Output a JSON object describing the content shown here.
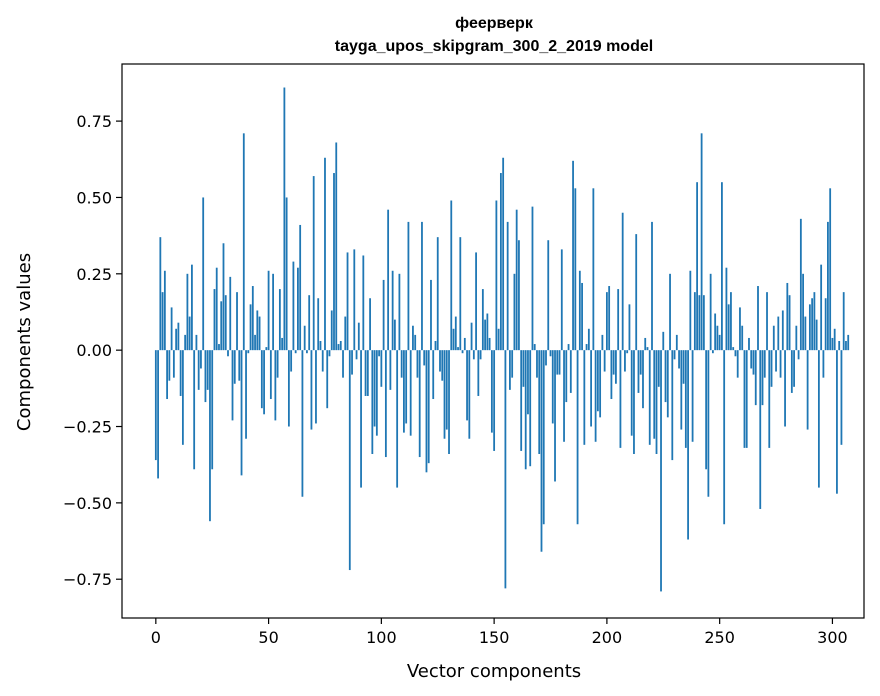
{
  "chart_data": {
    "type": "bar",
    "title": "феерверк",
    "subtitle": "tayga_upos_skipgram_300_2_2019 model",
    "xlabel": "Vector components",
    "ylabel": "Components values",
    "xlim": [
      -15,
      314
    ],
    "ylim": [
      -0.877,
      0.937
    ],
    "xticks": [
      0,
      50,
      100,
      150,
      200,
      250,
      300
    ],
    "xtick_labels": [
      "0",
      "50",
      "100",
      "150",
      "200",
      "250",
      "300"
    ],
    "yticks": [
      -0.75,
      -0.5,
      -0.25,
      0.0,
      0.25,
      0.5,
      0.75
    ],
    "ytick_labels": [
      "−0.75",
      "−0.50",
      "−0.25",
      "0.00",
      "0.25",
      "0.50",
      "0.75"
    ],
    "grid": false,
    "bar_color": "#1f77b4",
    "x_start": 0,
    "values": [
      -0.36,
      -0.42,
      0.37,
      0.19,
      0.26,
      -0.16,
      -0.1,
      0.14,
      -0.09,
      0.07,
      0.09,
      -0.15,
      -0.31,
      0.05,
      0.25,
      0.11,
      0.28,
      -0.39,
      0.05,
      -0.13,
      -0.06,
      0.5,
      -0.17,
      -0.13,
      -0.56,
      -0.39,
      0.2,
      0.27,
      0.02,
      0.16,
      0.35,
      0.18,
      -0.02,
      0.24,
      -0.23,
      -0.11,
      0.19,
      -0.1,
      -0.41,
      0.71,
      -0.29,
      -0.01,
      0.15,
      0.21,
      0.05,
      0.13,
      0.11,
      -0.19,
      -0.21,
      0.01,
      0.26,
      -0.16,
      0.25,
      -0.23,
      -0.09,
      0.2,
      0.04,
      0.86,
      0.5,
      -0.25,
      -0.07,
      0.29,
      -0.01,
      0.27,
      0.41,
      -0.48,
      0.08,
      -0.01,
      0.18,
      -0.26,
      0.57,
      -0.24,
      0.17,
      0.03,
      -0.07,
      0.63,
      -0.19,
      -0.02,
      0.13,
      0.58,
      0.68,
      0.02,
      0.03,
      -0.09,
      0.11,
      0.32,
      -0.72,
      -0.08,
      0.33,
      -0.03,
      0.09,
      -0.45,
      0.31,
      -0.15,
      -0.15,
      0.17,
      -0.34,
      -0.25,
      -0.28,
      -0.02,
      -0.12,
      0.23,
      -0.35,
      0.46,
      -0.13,
      0.26,
      0.1,
      -0.45,
      0.25,
      -0.09,
      -0.27,
      -0.24,
      0.42,
      -0.28,
      0.08,
      0.05,
      -0.09,
      -0.35,
      0.42,
      -0.05,
      -0.4,
      -0.37,
      0.23,
      -0.16,
      0.03,
      0.37,
      -0.07,
      -0.1,
      -0.29,
      -0.26,
      -0.34,
      0.49,
      0.07,
      0.11,
      0.01,
      0.37,
      -0.01,
      0.04,
      -0.23,
      -0.29,
      0.09,
      -0.03,
      0.32,
      -0.15,
      -0.03,
      0.2,
      0.1,
      0.12,
      0.04,
      -0.27,
      -0.33,
      0.49,
      0.07,
      0.58,
      0.63,
      -0.78,
      0.42,
      -0.13,
      -0.09,
      0.25,
      0.46,
      0.36,
      -0.33,
      -0.12,
      -0.39,
      -0.21,
      -0.38,
      0.47,
      0.02,
      -0.09,
      -0.34,
      -0.66,
      -0.57,
      -0.05,
      0.36,
      -0.02,
      -0.24,
      -0.43,
      -0.08,
      -0.08,
      0.33,
      -0.3,
      -0.17,
      0.02,
      -0.14,
      0.62,
      0.53,
      -0.57,
      0.26,
      0.22,
      -0.31,
      0.02,
      0.07,
      -0.25,
      0.53,
      -0.3,
      -0.2,
      -0.22,
      0.05,
      -0.07,
      0.19,
      0.21,
      -0.16,
      -0.08,
      -0.11,
      0.2,
      -0.32,
      0.45,
      -0.07,
      -0.01,
      0.15,
      -0.28,
      -0.34,
      0.38,
      -0.14,
      -0.08,
      -0.19,
      0.04,
      0.01,
      -0.31,
      0.42,
      -0.29,
      -0.34,
      -0.12,
      -0.79,
      0.06,
      -0.17,
      -0.22,
      0.25,
      -0.36,
      -0.03,
      0.05,
      -0.06,
      -0.26,
      -0.11,
      -0.32,
      -0.62,
      0.26,
      -0.3,
      0.19,
      0.55,
      0.18,
      0.71,
      0.18,
      -0.39,
      -0.48,
      0.25,
      -0.01,
      0.12,
      0.08,
      0.05,
      0.55,
      -0.57,
      0.27,
      0.15,
      0.19,
      0.01,
      -0.02,
      -0.09,
      0.14,
      0.08,
      -0.32,
      -0.32,
      0.04,
      -0.06,
      -0.08,
      -0.18,
      0.21,
      -0.52,
      -0.18,
      -0.09,
      0.19,
      -0.32,
      -0.12,
      0.08,
      -0.07,
      0.11,
      -0.09,
      0.13,
      -0.25,
      0.22,
      0.18,
      -0.14,
      -0.12,
      0.08,
      -0.03,
      0.43,
      0.25,
      0.11,
      -0.26,
      0.15,
      0.17,
      0.19,
      0.1,
      -0.45,
      0.28,
      -0.09,
      0.17,
      0.42,
      0.53,
      0.04,
      0.07,
      -0.47,
      0.03,
      -0.31,
      0.19,
      0.03,
      0.05
    ]
  }
}
